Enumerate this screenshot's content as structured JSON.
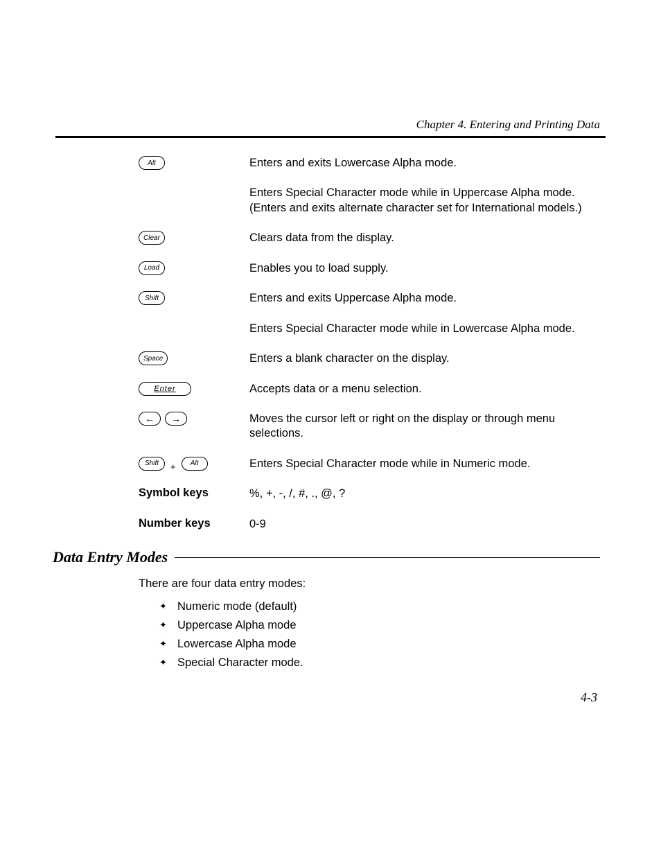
{
  "chapter_header": "Chapter 4.  Entering and Printing Data",
  "key_rows": [
    {
      "keys": [
        {
          "type": "small",
          "label": "Alt"
        }
      ],
      "desc": "Enters and exits Lowercase Alpha mode."
    },
    {
      "keys": [],
      "desc": "Enters Special Character mode while in Uppercase Alpha mode.  (Enters and exits alternate  character set for International models.)"
    },
    {
      "keys": [
        {
          "type": "small",
          "label": "Clear"
        }
      ],
      "desc": "Clears data from the display."
    },
    {
      "keys": [
        {
          "type": "small",
          "label": "Load"
        }
      ],
      "desc": "Enables you to load supply."
    },
    {
      "keys": [
        {
          "type": "small",
          "label": "Shift"
        }
      ],
      "desc": "Enters and exits Uppercase Alpha mode."
    },
    {
      "keys": [],
      "desc": "Enters Special Character mode while in Lowercase Alpha mode."
    },
    {
      "keys": [
        {
          "type": "small",
          "label": "Space"
        }
      ],
      "desc": "Enters a blank character on the display."
    },
    {
      "keys": [
        {
          "type": "wide",
          "label": "Enter"
        }
      ],
      "desc": "Accepts data or a menu selection."
    },
    {
      "keys": [
        {
          "type": "arrow",
          "label": "←"
        },
        {
          "type": "arrow",
          "label": "→"
        }
      ],
      "desc": "Moves the cursor left or right on the display or through menu selections."
    },
    {
      "keys": [
        {
          "type": "small",
          "label": "Shift"
        },
        {
          "type": "plus",
          "label": "+"
        },
        {
          "type": "small",
          "label": "Alt"
        }
      ],
      "desc": "Enters Special Character mode while in Numeric mode."
    },
    {
      "keys": [
        {
          "type": "bold",
          "label": "Symbol keys"
        }
      ],
      "desc": "%, +, -, /, #, ., @, ?"
    },
    {
      "keys": [
        {
          "type": "bold",
          "label": "Number keys"
        }
      ],
      "desc": "0-9"
    }
  ],
  "section_heading": "Data Entry Modes",
  "intro_para": "There are four data entry modes:",
  "bullets": [
    "Numeric mode (default)",
    "Uppercase Alpha mode",
    "Lowercase Alpha mode",
    "Special Character mode."
  ],
  "page_number": "4-3",
  "colors": {
    "text": "#000000",
    "bg": "#ffffff"
  },
  "fonts": {
    "serif_italic": "Times New Roman",
    "sans": "Arial"
  }
}
